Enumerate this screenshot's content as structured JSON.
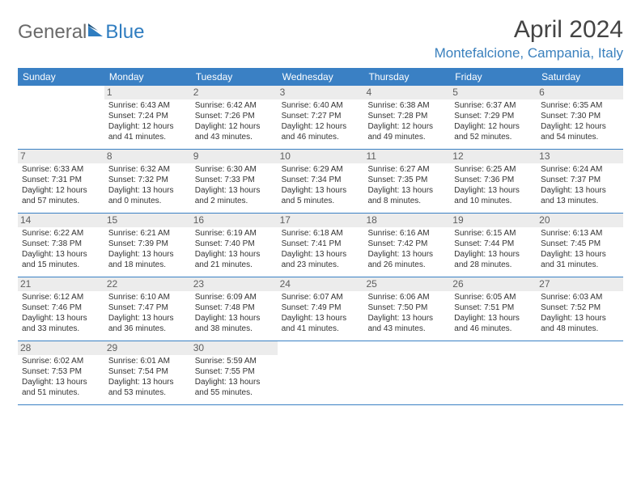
{
  "logo": {
    "text1": "General",
    "text2": "Blue"
  },
  "title": "April 2024",
  "location": "Montefalcione, Campania, Italy",
  "colors": {
    "header_bg": "#3a80c4",
    "header_text": "#ffffff",
    "rule": "#3a80c4",
    "daynum_bg": "#ececec",
    "location_text": "#3a80bd"
  },
  "daysOfWeek": [
    "Sunday",
    "Monday",
    "Tuesday",
    "Wednesday",
    "Thursday",
    "Friday",
    "Saturday"
  ],
  "weeks": [
    [
      {
        "n": "",
        "sr": "",
        "ss": "",
        "dl": ""
      },
      {
        "n": "1",
        "sr": "Sunrise: 6:43 AM",
        "ss": "Sunset: 7:24 PM",
        "dl": "Daylight: 12 hours and 41 minutes."
      },
      {
        "n": "2",
        "sr": "Sunrise: 6:42 AM",
        "ss": "Sunset: 7:26 PM",
        "dl": "Daylight: 12 hours and 43 minutes."
      },
      {
        "n": "3",
        "sr": "Sunrise: 6:40 AM",
        "ss": "Sunset: 7:27 PM",
        "dl": "Daylight: 12 hours and 46 minutes."
      },
      {
        "n": "4",
        "sr": "Sunrise: 6:38 AM",
        "ss": "Sunset: 7:28 PM",
        "dl": "Daylight: 12 hours and 49 minutes."
      },
      {
        "n": "5",
        "sr": "Sunrise: 6:37 AM",
        "ss": "Sunset: 7:29 PM",
        "dl": "Daylight: 12 hours and 52 minutes."
      },
      {
        "n": "6",
        "sr": "Sunrise: 6:35 AM",
        "ss": "Sunset: 7:30 PM",
        "dl": "Daylight: 12 hours and 54 minutes."
      }
    ],
    [
      {
        "n": "7",
        "sr": "Sunrise: 6:33 AM",
        "ss": "Sunset: 7:31 PM",
        "dl": "Daylight: 12 hours and 57 minutes."
      },
      {
        "n": "8",
        "sr": "Sunrise: 6:32 AM",
        "ss": "Sunset: 7:32 PM",
        "dl": "Daylight: 13 hours and 0 minutes."
      },
      {
        "n": "9",
        "sr": "Sunrise: 6:30 AM",
        "ss": "Sunset: 7:33 PM",
        "dl": "Daylight: 13 hours and 2 minutes."
      },
      {
        "n": "10",
        "sr": "Sunrise: 6:29 AM",
        "ss": "Sunset: 7:34 PM",
        "dl": "Daylight: 13 hours and 5 minutes."
      },
      {
        "n": "11",
        "sr": "Sunrise: 6:27 AM",
        "ss": "Sunset: 7:35 PM",
        "dl": "Daylight: 13 hours and 8 minutes."
      },
      {
        "n": "12",
        "sr": "Sunrise: 6:25 AM",
        "ss": "Sunset: 7:36 PM",
        "dl": "Daylight: 13 hours and 10 minutes."
      },
      {
        "n": "13",
        "sr": "Sunrise: 6:24 AM",
        "ss": "Sunset: 7:37 PM",
        "dl": "Daylight: 13 hours and 13 minutes."
      }
    ],
    [
      {
        "n": "14",
        "sr": "Sunrise: 6:22 AM",
        "ss": "Sunset: 7:38 PM",
        "dl": "Daylight: 13 hours and 15 minutes."
      },
      {
        "n": "15",
        "sr": "Sunrise: 6:21 AM",
        "ss": "Sunset: 7:39 PM",
        "dl": "Daylight: 13 hours and 18 minutes."
      },
      {
        "n": "16",
        "sr": "Sunrise: 6:19 AM",
        "ss": "Sunset: 7:40 PM",
        "dl": "Daylight: 13 hours and 21 minutes."
      },
      {
        "n": "17",
        "sr": "Sunrise: 6:18 AM",
        "ss": "Sunset: 7:41 PM",
        "dl": "Daylight: 13 hours and 23 minutes."
      },
      {
        "n": "18",
        "sr": "Sunrise: 6:16 AM",
        "ss": "Sunset: 7:42 PM",
        "dl": "Daylight: 13 hours and 26 minutes."
      },
      {
        "n": "19",
        "sr": "Sunrise: 6:15 AM",
        "ss": "Sunset: 7:44 PM",
        "dl": "Daylight: 13 hours and 28 minutes."
      },
      {
        "n": "20",
        "sr": "Sunrise: 6:13 AM",
        "ss": "Sunset: 7:45 PM",
        "dl": "Daylight: 13 hours and 31 minutes."
      }
    ],
    [
      {
        "n": "21",
        "sr": "Sunrise: 6:12 AM",
        "ss": "Sunset: 7:46 PM",
        "dl": "Daylight: 13 hours and 33 minutes."
      },
      {
        "n": "22",
        "sr": "Sunrise: 6:10 AM",
        "ss": "Sunset: 7:47 PM",
        "dl": "Daylight: 13 hours and 36 minutes."
      },
      {
        "n": "23",
        "sr": "Sunrise: 6:09 AM",
        "ss": "Sunset: 7:48 PM",
        "dl": "Daylight: 13 hours and 38 minutes."
      },
      {
        "n": "24",
        "sr": "Sunrise: 6:07 AM",
        "ss": "Sunset: 7:49 PM",
        "dl": "Daylight: 13 hours and 41 minutes."
      },
      {
        "n": "25",
        "sr": "Sunrise: 6:06 AM",
        "ss": "Sunset: 7:50 PM",
        "dl": "Daylight: 13 hours and 43 minutes."
      },
      {
        "n": "26",
        "sr": "Sunrise: 6:05 AM",
        "ss": "Sunset: 7:51 PM",
        "dl": "Daylight: 13 hours and 46 minutes."
      },
      {
        "n": "27",
        "sr": "Sunrise: 6:03 AM",
        "ss": "Sunset: 7:52 PM",
        "dl": "Daylight: 13 hours and 48 minutes."
      }
    ],
    [
      {
        "n": "28",
        "sr": "Sunrise: 6:02 AM",
        "ss": "Sunset: 7:53 PM",
        "dl": "Daylight: 13 hours and 51 minutes."
      },
      {
        "n": "29",
        "sr": "Sunrise: 6:01 AM",
        "ss": "Sunset: 7:54 PM",
        "dl": "Daylight: 13 hours and 53 minutes."
      },
      {
        "n": "30",
        "sr": "Sunrise: 5:59 AM",
        "ss": "Sunset: 7:55 PM",
        "dl": "Daylight: 13 hours and 55 minutes."
      },
      {
        "n": "",
        "sr": "",
        "ss": "",
        "dl": ""
      },
      {
        "n": "",
        "sr": "",
        "ss": "",
        "dl": ""
      },
      {
        "n": "",
        "sr": "",
        "ss": "",
        "dl": ""
      },
      {
        "n": "",
        "sr": "",
        "ss": "",
        "dl": ""
      }
    ]
  ]
}
